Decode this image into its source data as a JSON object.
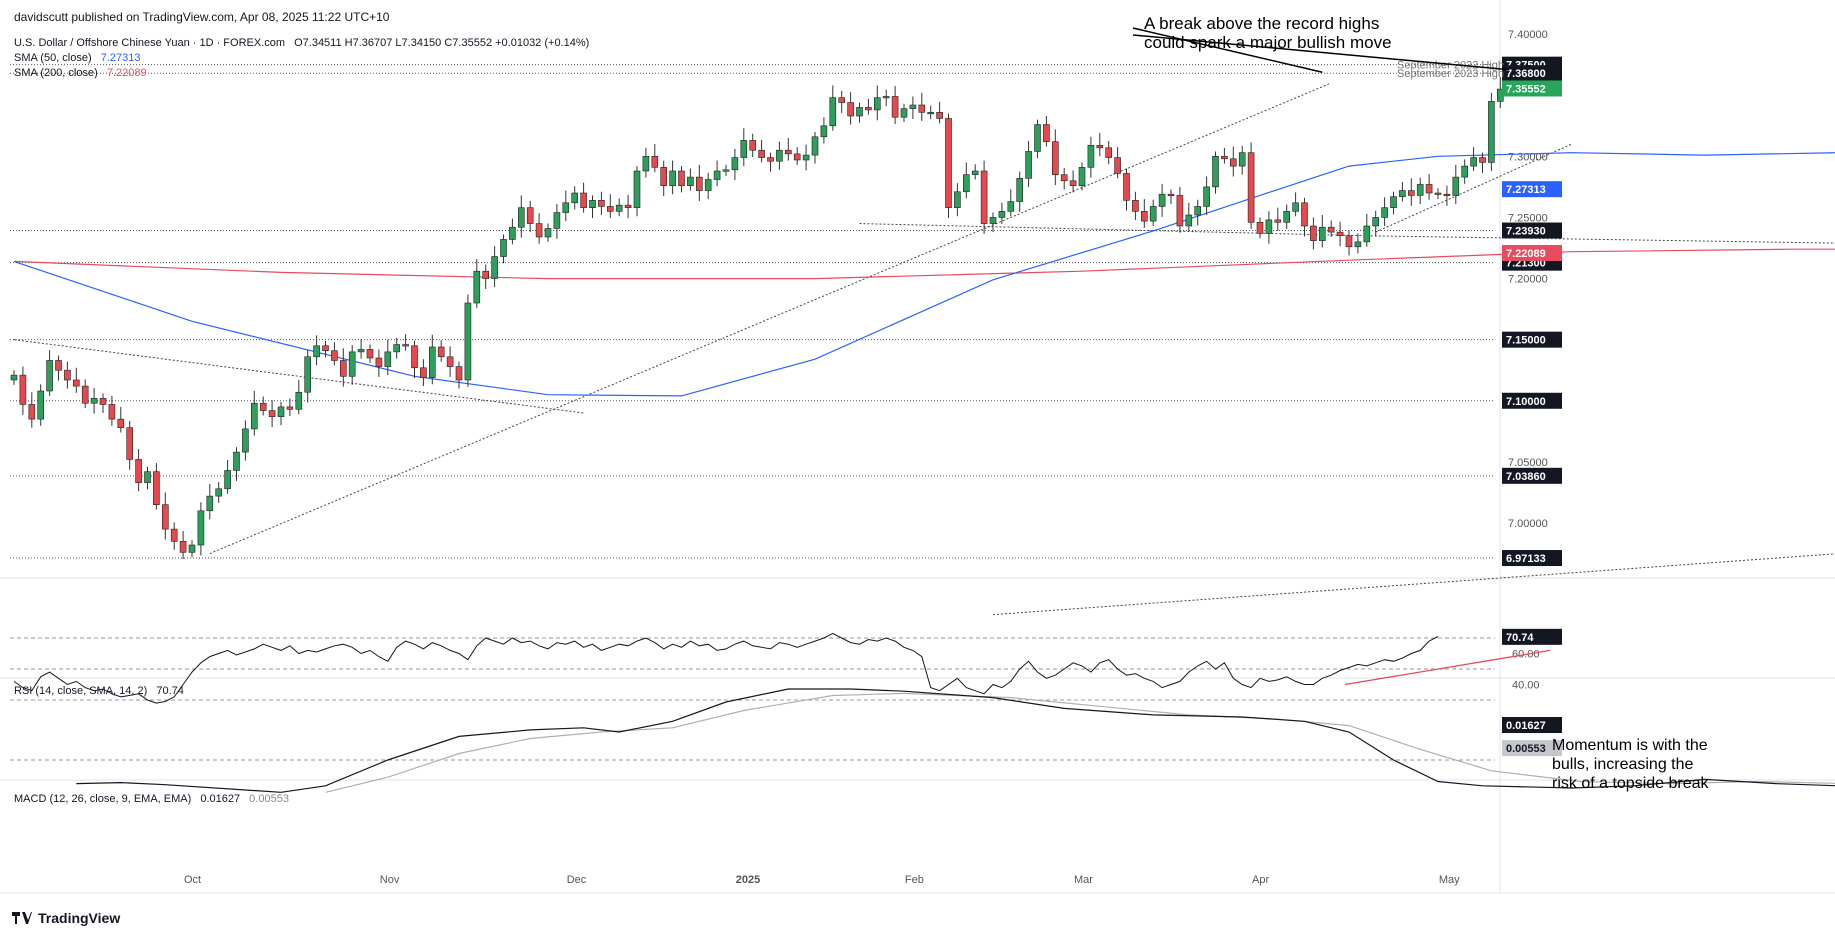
{
  "publisher_line": "davidscutt published on TradingView.com, Apr 08, 2025 11:22 UTC+10",
  "symbol_line": "U.S. Dollar / Offshore Chinese Yuan · 1D · FOREX.com",
  "ohlc_line": "O7.34511  H7.36707  L7.34150  C7.35552  +0.01032 (+0.14%)",
  "sma50_label": "SMA (50, close)",
  "sma50_value": "7.27313",
  "sma200_label": "SMA (200, close)",
  "sma200_value": "7.22089",
  "rsi_label": "RSI (14, close, SMA, 14, 2)",
  "rsi_value": "70.74",
  "macd_label": "MACD (12, 26, close, 9, EMA, EMA)",
  "macd_value": "0.01627",
  "macd_signal_value": "0.00553",
  "annotation_top": "A break above the record highs\ncould spark a major bullish move",
  "annotation_rsi": "Momentum is with the\nbulls, increasing the\nrisk of a topside break",
  "footer_brand": "TradingView",
  "colors": {
    "up": "#2e9e5b",
    "down": "#e5484d",
    "sma50": "#2962ff",
    "sma200": "#e84a5f",
    "current": "#26a65b",
    "tag": "#131722"
  },
  "chart_data": {
    "type": "candlestick",
    "interval": "1D",
    "price_axis": {
      "ticks": [
        7.4,
        7.3,
        7.25,
        7.2,
        7.05,
        7.0
      ],
      "ylim": [
        6.955,
        7.405
      ]
    },
    "time_axis_labels": [
      "Oct",
      "Nov",
      "Dec",
      "2025",
      "Feb",
      "Mar",
      "Apr",
      "May"
    ],
    "horizontal_levels": [
      {
        "value": 7.375,
        "tag": "7.37500",
        "text": "September 2022 High"
      },
      {
        "value": 7.368,
        "tag": "7.36800",
        "text": "September 2023 High"
      },
      {
        "value": 7.2393,
        "tag": "7.23930",
        "text": ""
      },
      {
        "value": 7.213,
        "tag": "7.21300",
        "text": ""
      },
      {
        "value": 7.15,
        "tag": "7.15000",
        "text": ""
      },
      {
        "value": 7.1,
        "tag": "7.10000",
        "text": ""
      },
      {
        "value": 7.0386,
        "tag": "7.03860",
        "text": ""
      },
      {
        "value": 6.97133,
        "tag": "6.97133",
        "text": ""
      }
    ],
    "current_price": {
      "value": 7.35552,
      "tag": "7.35552"
    },
    "sma50_tag": {
      "value": 7.27313,
      "tag": "7.27313"
    },
    "sma200_tag": {
      "value": 7.22089,
      "tag": "7.22089"
    },
    "closes": [
      7.121,
      7.097,
      7.085,
      7.108,
      7.133,
      7.125,
      7.117,
      7.112,
      7.098,
      7.102,
      7.097,
      7.085,
      7.078,
      7.052,
      7.033,
      7.042,
      7.015,
      6.995,
      6.985,
      6.976,
      6.982,
      7.01,
      7.022,
      7.028,
      7.043,
      7.058,
      7.077,
      7.098,
      7.092,
      7.087,
      7.095,
      7.093,
      7.107,
      7.136,
      7.145,
      7.141,
      7.133,
      7.12,
      7.14,
      7.142,
      7.135,
      7.128,
      7.14,
      7.146,
      7.145,
      7.127,
      7.119,
      7.144,
      7.136,
      7.128,
      7.117,
      7.18,
      7.206,
      7.2,
      7.218,
      7.232,
      7.242,
      7.258,
      7.245,
      7.234,
      7.241,
      7.254,
      7.262,
      7.27,
      7.258,
      7.264,
      7.259,
      7.255,
      7.26,
      7.258,
      7.288,
      7.3,
      7.291,
      7.276,
      7.288,
      7.276,
      7.283,
      7.272,
      7.281,
      7.288,
      7.289,
      7.299,
      7.313,
      7.305,
      7.299,
      7.296,
      7.305,
      7.302,
      7.297,
      7.301,
      7.316,
      7.325,
      7.348,
      7.344,
      7.333,
      7.34,
      7.338,
      7.348,
      7.349,
      7.332,
      7.339,
      7.342,
      7.336,
      7.336,
      7.331,
      7.258,
      7.271,
      7.285,
      7.288,
      7.245,
      7.25,
      7.255,
      7.263,
      7.282,
      7.304,
      7.326,
      7.312,
      7.285,
      7.28,
      7.276,
      7.291,
      7.309,
      7.307,
      7.299,
      7.286,
      7.264,
      7.255,
      7.247,
      7.259,
      7.269,
      7.268,
      7.243,
      7.252,
      7.259,
      7.275,
      7.3,
      7.298,
      7.292,
      7.303,
      7.246,
      7.237,
      7.248,
      7.246,
      7.255,
      7.262,
      7.243,
      7.231,
      7.242,
      7.238,
      7.235,
      7.226,
      7.23,
      7.243,
      7.25,
      7.258,
      7.267,
      7.272,
      7.268,
      7.277,
      7.27,
      7.269,
      7.268,
      7.283,
      7.292,
      7.299,
      7.295,
      7.345,
      7.355
    ],
    "sma50": [
      [
        0,
        7.214
      ],
      [
        20,
        7.165
      ],
      [
        45,
        7.12
      ],
      [
        60,
        7.105
      ],
      [
        75,
        7.104
      ],
      [
        90,
        7.134
      ],
      [
        110,
        7.199
      ],
      [
        128,
        7.239
      ],
      [
        140,
        7.268
      ],
      [
        150,
        7.292
      ],
      [
        160,
        7.3
      ],
      [
        175,
        7.303
      ],
      [
        190,
        7.301
      ],
      [
        205,
        7.303
      ],
      [
        222,
        7.302
      ],
      [
        240,
        7.282
      ],
      [
        255,
        7.271
      ],
      [
        262,
        7.273
      ]
    ],
    "sma200": [
      [
        0,
        7.214
      ],
      [
        30,
        7.205
      ],
      [
        60,
        7.2
      ],
      [
        90,
        7.2
      ],
      [
        120,
        7.206
      ],
      [
        150,
        7.215
      ],
      [
        175,
        7.222
      ],
      [
        200,
        7.224
      ],
      [
        220,
        7.224
      ],
      [
        262,
        7.221
      ]
    ],
    "trendlines": [
      {
        "from": [
          0,
          7.15
        ],
        "to": [
          64,
          7.09
        ]
      },
      {
        "from": [
          22,
          6.975
        ],
        "to": [
          148,
          7.36
        ]
      },
      {
        "from": [
          95,
          7.245
        ],
        "to": [
          152,
          7.235
        ]
      },
      {
        "from": [
          152,
          7.235
        ],
        "to": [
          240,
          7.225
        ]
      },
      {
        "from": [
          153,
          7.238
        ],
        "to": [
          175,
          7.31
        ]
      },
      {
        "from": [
          110,
          6.925
        ],
        "to": [
          262,
          7.005
        ]
      }
    ],
    "rsi": {
      "axis_ticks": [
        60,
        40
      ],
      "reference_levels": [
        70,
        50,
        30
      ],
      "current": 70.74,
      "values": [
        42,
        38,
        36,
        45,
        48,
        44,
        40,
        42,
        38,
        36,
        37,
        34,
        32,
        33,
        34,
        30,
        28,
        29,
        32,
        40,
        48,
        54,
        58,
        60,
        62,
        59,
        61,
        63,
        66,
        64,
        62,
        65,
        60,
        62,
        61,
        63,
        65,
        66,
        64,
        60,
        62,
        58,
        55,
        64,
        68,
        66,
        63,
        67,
        65,
        62,
        60,
        56,
        65,
        70,
        68,
        66,
        70,
        67,
        68,
        65,
        63,
        67,
        66,
        68,
        64,
        66,
        62,
        64,
        66,
        65,
        68,
        70,
        67,
        63,
        66,
        64,
        68,
        65,
        66,
        62,
        63,
        66,
        68,
        65,
        64,
        63,
        67,
        66,
        64,
        66,
        68,
        70,
        73,
        70,
        67,
        66,
        69,
        68,
        70,
        68,
        64,
        62,
        58,
        38,
        36,
        40,
        44,
        38,
        36,
        34,
        40,
        38,
        42,
        50,
        55,
        48,
        44,
        46,
        50,
        54,
        52,
        48,
        54,
        56,
        50,
        46,
        47,
        44,
        42,
        38,
        40,
        42,
        48,
        52,
        55,
        50,
        54,
        44,
        40,
        38,
        44,
        42,
        43,
        45,
        42,
        40,
        40,
        44,
        46,
        49,
        51,
        53,
        52,
        54,
        56,
        55,
        57,
        60,
        62,
        68,
        71
      ]
    },
    "macd": {
      "value": 0.01627,
      "signal": 0.00553,
      "macd_path": [
        [
          7,
          -0.011
        ],
        [
          12,
          -0.0105
        ],
        [
          17,
          -0.0115
        ],
        [
          30,
          -0.015
        ],
        [
          35,
          -0.012
        ],
        [
          42,
          0.0
        ],
        [
          50,
          0.011
        ],
        [
          58,
          0.014
        ],
        [
          64,
          0.015
        ],
        [
          68,
          0.013
        ],
        [
          74,
          0.018
        ],
        [
          80,
          0.027
        ],
        [
          87,
          0.033
        ],
        [
          94,
          0.033
        ],
        [
          100,
          0.032
        ],
        [
          110,
          0.029
        ],
        [
          118,
          0.024
        ],
        [
          128,
          0.021
        ],
        [
          138,
          0.02
        ],
        [
          145,
          0.018
        ],
        [
          150,
          0.013
        ],
        [
          155,
          0.0
        ],
        [
          160,
          -0.01
        ],
        [
          165,
          -0.012
        ],
        [
          175,
          -0.013
        ],
        [
          182,
          -0.012
        ],
        [
          190,
          -0.009
        ],
        [
          198,
          -0.011
        ],
        [
          205,
          -0.012
        ],
        [
          212,
          -0.009
        ],
        [
          222,
          -0.003
        ],
        [
          232,
          0.0
        ],
        [
          242,
          0.006
        ],
        [
          252,
          0.01
        ],
        [
          262,
          0.01627
        ]
      ],
      "signal_path": [
        [
          35,
          -0.015
        ],
        [
          42,
          -0.008
        ],
        [
          50,
          0.003
        ],
        [
          58,
          0.01
        ],
        [
          66,
          0.013
        ],
        [
          74,
          0.015
        ],
        [
          82,
          0.023
        ],
        [
          92,
          0.03
        ],
        [
          100,
          0.031
        ],
        [
          112,
          0.029
        ],
        [
          122,
          0.025
        ],
        [
          132,
          0.021
        ],
        [
          142,
          0.019
        ],
        [
          150,
          0.016
        ],
        [
          158,
          0.005
        ],
        [
          166,
          -0.005
        ],
        [
          176,
          -0.01
        ],
        [
          186,
          -0.011
        ],
        [
          196,
          -0.01
        ],
        [
          206,
          -0.011
        ],
        [
          216,
          -0.008
        ],
        [
          226,
          -0.004
        ],
        [
          236,
          -0.001
        ],
        [
          246,
          0.003
        ],
        [
          262,
          0.00553
        ]
      ]
    }
  }
}
